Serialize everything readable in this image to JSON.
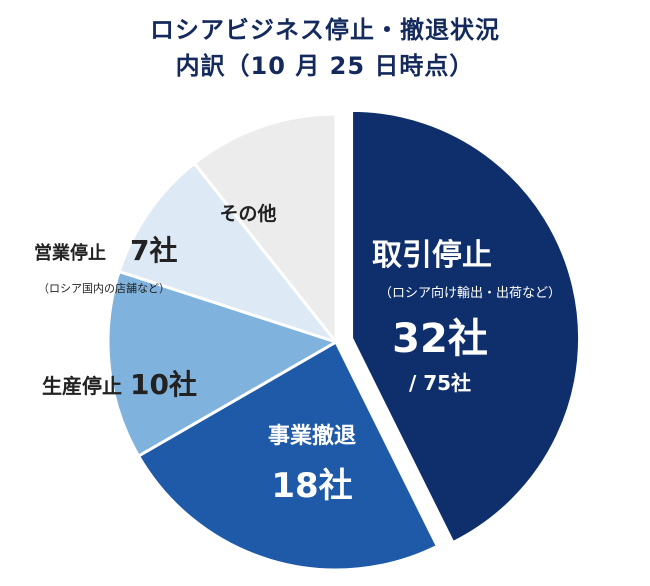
{
  "chart_data": {
    "type": "pie",
    "title": "ロシアビジネス停止・撤退状況",
    "subtitle": "内訳（10 月 25 日時点）",
    "total_label": "/ 75社",
    "slices": [
      {
        "label": "取引停止",
        "note": "（ロシア向け輸出・出荷など）",
        "value": 32,
        "value_label": "32社",
        "color": "#0f2f6c",
        "exploded": true
      },
      {
        "label": "事業撤退",
        "note": "",
        "value": 18,
        "value_label": "18社",
        "color": "#1f5aa8",
        "exploded": false
      },
      {
        "label": "生産停止",
        "note": "",
        "value": 10,
        "value_label": "10社",
        "color": "#7fb2dc",
        "exploded": false
      },
      {
        "label": "営業停止",
        "note": "（ロシア国内の店舗など）",
        "value": 7,
        "value_label": "7社",
        "color": "#dde9f5",
        "exploded": false
      },
      {
        "label": "その他",
        "note": "",
        "value": 8,
        "value_label": "",
        "color": "#ececec",
        "exploded": false
      }
    ]
  }
}
